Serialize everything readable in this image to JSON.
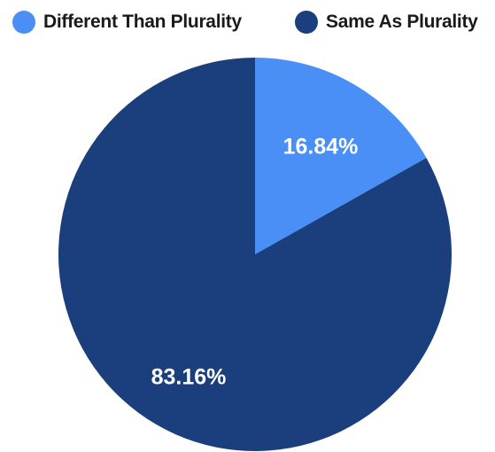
{
  "chart_data": {
    "type": "pie",
    "title": "",
    "legend_position": "top",
    "slices": [
      {
        "label": "Different Than Plurality",
        "value": 16.84,
        "display": "16.84%",
        "color": "#4a8ff5"
      },
      {
        "label": "Same As Plurality",
        "value": 83.16,
        "display": "83.16%",
        "color": "#1b3f7d"
      }
    ]
  }
}
